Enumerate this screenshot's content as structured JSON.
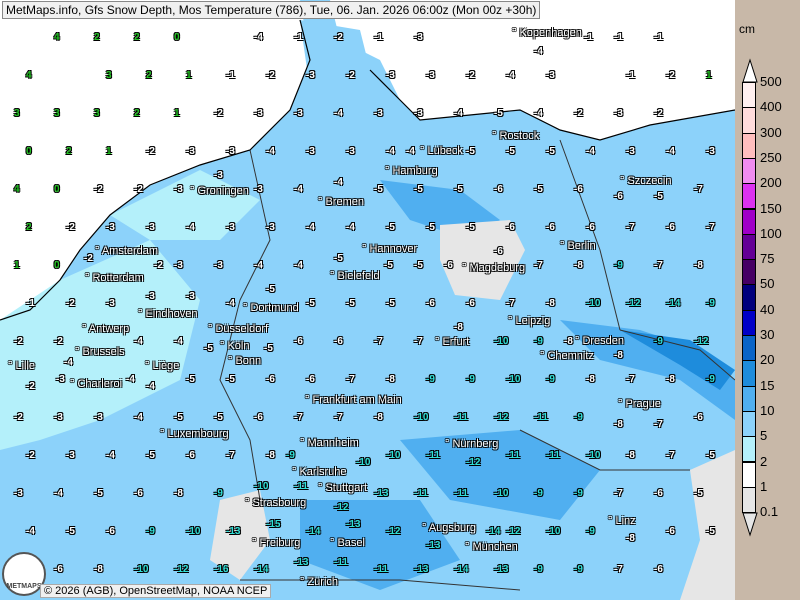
{
  "title": "MetMaps.info, Gfs Snow Depth, Mos Temperature (786), Tue, 06. Jan. 2026 06:00z (Mon 00z +30h)",
  "copyright": "© 2026 (AGB), OpenStreetMap, NOAA NCEP",
  "logo_text": "METMAPS",
  "legend": {
    "unit": "cm",
    "levels": [
      {
        "label": "500",
        "color": "#fff0f0"
      },
      {
        "label": "400",
        "color": "#ffdcdc"
      },
      {
        "label": "300",
        "color": "#ffbebe"
      },
      {
        "label": "250",
        "color": "#f08cf0"
      },
      {
        "label": "200",
        "color": "#dc32f0"
      },
      {
        "label": "150",
        "color": "#a000c8"
      },
      {
        "label": "100",
        "color": "#640096"
      },
      {
        "label": "75",
        "color": "#460064"
      },
      {
        "label": "50",
        "color": "#00007d"
      },
      {
        "label": "40",
        "color": "#0000c8"
      },
      {
        "label": "30",
        "color": "#0a64c8"
      },
      {
        "label": "20",
        "color": "#1e8cdc"
      },
      {
        "label": "15",
        "color": "#50aff0"
      },
      {
        "label": "10",
        "color": "#8cd2fa"
      },
      {
        "label": "5",
        "color": "#b4f0fa"
      },
      {
        "label": "2",
        "color": "#ffffff"
      },
      {
        "label": "1",
        "color": "#e6e6e6"
      },
      {
        "label": "0.1",
        "color": "#e6e6e6"
      }
    ]
  },
  "cities": [
    {
      "name": "Kopenhagen"
    },
    {
      "name": "Rostock"
    },
    {
      "name": "Lübeck"
    },
    {
      "name": "Hamburg"
    },
    {
      "name": "Szczecin"
    },
    {
      "name": "Groningen"
    },
    {
      "name": "Bremen"
    },
    {
      "name": "Amsterdam"
    },
    {
      "name": "Hannover"
    },
    {
      "name": "Berlin"
    },
    {
      "name": "Rotterdam"
    },
    {
      "name": "Bielefeld"
    },
    {
      "name": "Magdeburg"
    },
    {
      "name": "Eindhoven"
    },
    {
      "name": "Dortmund"
    },
    {
      "name": "Antwerp"
    },
    {
      "name": "Düsseldorf"
    },
    {
      "name": "Leipzig"
    },
    {
      "name": "Dresden"
    },
    {
      "name": "Brussels"
    },
    {
      "name": "Köln"
    },
    {
      "name": "Erfurt"
    },
    {
      "name": "Chemnitz"
    },
    {
      "name": "Lille"
    },
    {
      "name": "Liège"
    },
    {
      "name": "Bonn"
    },
    {
      "name": "Charleroi"
    },
    {
      "name": "Frankfurt am Main"
    },
    {
      "name": "Prague"
    },
    {
      "name": "Luxembourg"
    },
    {
      "name": "Mannheim"
    },
    {
      "name": "Nürnberg"
    },
    {
      "name": "Karlsruhe"
    },
    {
      "name": "Stuttgart"
    },
    {
      "name": "Strasbourg"
    },
    {
      "name": "Augsburg"
    },
    {
      "name": "München"
    },
    {
      "name": "Linz"
    },
    {
      "name": "Freiburg"
    },
    {
      "name": "Basel"
    },
    {
      "name": "Zürich"
    }
  ],
  "temperature_grid": [
    [
      null,
      4,
      2,
      2,
      0,
      null,
      -4,
      -1,
      -2,
      -1,
      -3,
      null,
      null,
      -4,
      -1,
      -1,
      -1,
      null
    ],
    [
      4,
      null,
      3,
      2,
      1,
      -1,
      -2,
      -3,
      -2,
      -3,
      -3,
      -2,
      -4,
      -3,
      null,
      -1,
      -2,
      1
    ],
    [
      3,
      3,
      3,
      2,
      1,
      -2,
      -3,
      -3,
      -4,
      -3,
      -3,
      -4,
      -5,
      -4,
      -2,
      -3,
      -2,
      null
    ],
    [
      0,
      2,
      1,
      -2,
      -3,
      -3,
      -4,
      -3,
      -3,
      -4,
      -4,
      -5,
      -5,
      -5,
      -4,
      -3,
      -4,
      -3
    ],
    [
      4,
      0,
      -2,
      -2,
      -3,
      -3,
      -3,
      -4,
      -4,
      -5,
      -5,
      -5,
      -6,
      -5,
      -6,
      -6,
      -5,
      -7
    ],
    [
      2,
      -2,
      -3,
      -3,
      -4,
      -3,
      -3,
      -4,
      -4,
      -5,
      -5,
      -5,
      -6,
      -6,
      -6,
      -7,
      -6,
      -7
    ],
    [
      1,
      0,
      -2,
      -2,
      -3,
      -3,
      -4,
      -4,
      -5,
      -5,
      -5,
      -6,
      -6,
      -7,
      -8,
      -9,
      -7,
      -8
    ],
    [
      -1,
      -2,
      -3,
      -3,
      -3,
      -4,
      -5,
      -5,
      -5,
      -5,
      -6,
      -6,
      -7,
      -8,
      -10,
      -12,
      -14,
      -9
    ],
    [
      -2,
      -2,
      -4,
      -4,
      -4,
      -5,
      -5,
      -6,
      -6,
      -7,
      -7,
      -8,
      -10,
      -9,
      -8,
      -8,
      -9,
      -12
    ],
    [
      -2,
      -3,
      -4,
      -4,
      -5,
      -5,
      -6,
      -6,
      -7,
      -8,
      -9,
      -9,
      -10,
      -9,
      -8,
      -7,
      -8,
      -9
    ],
    [
      -2,
      -3,
      -3,
      -4,
      -5,
      -5,
      -6,
      -7,
      -7,
      -8,
      -10,
      -11,
      -12,
      -11,
      -9,
      -8,
      -7,
      -6
    ],
    [
      -2,
      -3,
      -4,
      -5,
      -6,
      -7,
      -8,
      -9,
      -10,
      -10,
      -11,
      -12,
      -11,
      -11,
      -10,
      -8,
      -7,
      -5
    ],
    [
      -3,
      -4,
      -5,
      -6,
      -8,
      -9,
      -10,
      -11,
      -12,
      -13,
      -11,
      -11,
      -10,
      -9,
      -9,
      -7,
      -6,
      -5
    ],
    [
      -4,
      -5,
      -6,
      -9,
      -10,
      -13,
      -15,
      -14,
      -13,
      -12,
      -13,
      -14,
      -12,
      -10,
      -9,
      -8,
      -6,
      -5
    ],
    [
      null,
      -6,
      -8,
      -10,
      -12,
      -16,
      -14,
      -13,
      -11,
      -11,
      -13,
      -14,
      -13,
      -9,
      -9,
      -7,
      -6,
      null
    ]
  ],
  "value_colors": {
    "positive": "#22c322",
    "normal": "#ffffff",
    "cold": "#30e0d8"
  }
}
